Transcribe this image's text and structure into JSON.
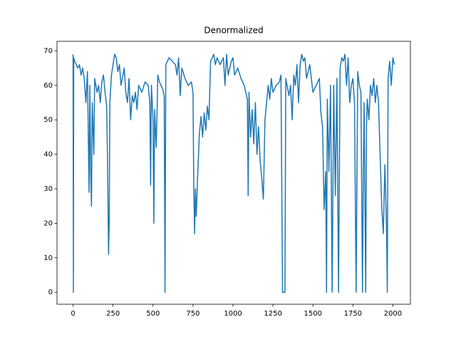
{
  "chart_data": {
    "type": "line",
    "title": "Denormalized",
    "x": [
      0,
      2,
      4,
      10,
      20,
      30,
      40,
      50,
      60,
      70,
      80,
      90,
      100,
      105,
      110,
      115,
      120,
      130,
      135,
      150,
      160,
      170,
      180,
      190,
      200,
      210,
      215,
      218,
      222,
      226,
      230,
      240,
      250,
      260,
      270,
      280,
      290,
      300,
      320,
      330,
      340,
      350,
      360,
      370,
      380,
      390,
      400,
      410,
      430,
      450,
      470,
      480,
      485,
      490,
      500,
      505,
      510,
      520,
      525,
      530,
      540,
      560,
      570,
      575,
      580,
      600,
      620,
      640,
      650,
      660,
      670,
      680,
      700,
      720,
      740,
      750,
      755,
      760,
      765,
      770,
      780,
      790,
      800,
      810,
      820,
      830,
      840,
      850,
      860,
      870,
      880,
      890,
      900,
      920,
      940,
      950,
      960,
      970,
      990,
      1000,
      1010,
      1030,
      1050,
      1070,
      1090,
      1095,
      1100,
      1110,
      1120,
      1130,
      1140,
      1150,
      1160,
      1170,
      1180,
      1190,
      1200,
      1210,
      1220,
      1230,
      1240,
      1250,
      1270,
      1290,
      1300,
      1310,
      1325,
      1330,
      1350,
      1360,
      1370,
      1380,
      1390,
      1400,
      1410,
      1420,
      1430,
      1440,
      1450,
      1460,
      1480,
      1500,
      1520,
      1540,
      1550,
      1560,
      1570,
      1580,
      1585,
      1590,
      1600,
      1610,
      1620,
      1630,
      1640,
      1650,
      1660,
      1670,
      1680,
      1690,
      1700,
      1710,
      1720,
      1730,
      1740,
      1750,
      1760,
      1770,
      1780,
      1790,
      1800,
      1810,
      1815,
      1820,
      1830,
      1835,
      1840,
      1850,
      1860,
      1870,
      1880,
      1890,
      1900,
      1910,
      1920,
      1930,
      1940,
      1950,
      1960,
      1965,
      1970,
      1980,
      1990,
      2000,
      2009
    ],
    "series": [
      {
        "color": "#1f77b4",
        "values": [
          69,
          0,
          68,
          67,
          66,
          65,
          66,
          63,
          65,
          62,
          55,
          64,
          29,
          60,
          35,
          25,
          55,
          40,
          62,
          58,
          60,
          55,
          61,
          63,
          58,
          54,
          40,
          28,
          11,
          20,
          55,
          63,
          66,
          69,
          68,
          64,
          66,
          60,
          65,
          58,
          55,
          62,
          50,
          57,
          55,
          58,
          53,
          60,
          58,
          61,
          60,
          55,
          31,
          60,
          50,
          20,
          53,
          42,
          52,
          63,
          61,
          59,
          57,
          0,
          66,
          68,
          67,
          66,
          63,
          68,
          57,
          65,
          62,
          60,
          61,
          58,
          30,
          17,
          30,
          22,
          35,
          46,
          51,
          45,
          52,
          47,
          54,
          50,
          67,
          68,
          69,
          66,
          68,
          66,
          68,
          60,
          69,
          63,
          67,
          68,
          63,
          65,
          62,
          60,
          56,
          28,
          58,
          45,
          53,
          43,
          55,
          40,
          48,
          38,
          33,
          27,
          50,
          55,
          60,
          56,
          62,
          58,
          60,
          61,
          63,
          0,
          0,
          62,
          57,
          60,
          50,
          63,
          60,
          66,
          55,
          66,
          69,
          67,
          68,
          62,
          66,
          58,
          60,
          62,
          52,
          48,
          24,
          35,
          0,
          56,
          35,
          60,
          0,
          60,
          28,
          62,
          0,
          65,
          68,
          67,
          69,
          60,
          68,
          55,
          60,
          62,
          55,
          0,
          64,
          60,
          58,
          0,
          35,
          55,
          0,
          48,
          56,
          50,
          60,
          57,
          62,
          55,
          60,
          55,
          40,
          25,
          17,
          37,
          19,
          0,
          62,
          67,
          60,
          68,
          66
        ]
      }
    ],
    "xlim": [
      -100.45,
      2109.45
    ],
    "ylim": [
      -3.465,
      72.765
    ],
    "xticks": [
      0,
      250,
      500,
      750,
      1000,
      1250,
      1500,
      1750,
      2000
    ],
    "yticks": [
      0,
      10,
      20,
      30,
      40,
      50,
      60,
      70
    ]
  }
}
